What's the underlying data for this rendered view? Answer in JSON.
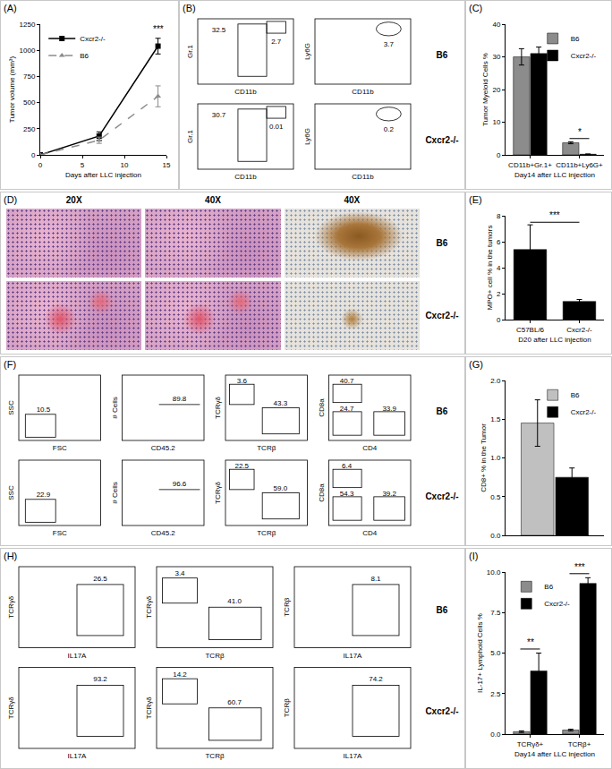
{
  "chart_data": [
    {
      "panel": "(A)",
      "type": "line",
      "x_label": "Days after LLC injection",
      "y_label": "Tumor volume (mm³)",
      "x": [
        0,
        7,
        14
      ],
      "series": [
        {
          "name": "Cxcr2-/-",
          "color": "#000000",
          "marker": "square",
          "line_style": "solid",
          "values": [
            0,
            180,
            1040
          ],
          "errors": [
            5,
            40,
            75
          ]
        },
        {
          "name": "B6",
          "color": "#8c8c8c",
          "marker": "triangle",
          "line_style": "dashed",
          "values": [
            0,
            140,
            560
          ],
          "errors": [
            5,
            30,
            100
          ]
        }
      ],
      "xlim": [
        0,
        15
      ],
      "xticks": [
        0,
        5,
        10,
        15
      ],
      "ylim": [
        0,
        1250
      ],
      "yticks": [
        0,
        250,
        500,
        750,
        1000,
        1250
      ],
      "grid": false,
      "legend": "top left",
      "annotations": [
        {
          "text": "***",
          "x": 14
        }
      ]
    },
    {
      "panel": "(C)",
      "type": "bar",
      "x_label": "Day14 after LLC injection",
      "y_label": "Tumor Myeloid Cells %",
      "categories": [
        "CD11b+Gr.1+",
        "CD11b+Ly6G+"
      ],
      "series": [
        {
          "name": "B6",
          "color": "#8c8c8c",
          "values": [
            30,
            3.7
          ],
          "errors": [
            2.5,
            0.3
          ]
        },
        {
          "name": "Cxcr2-/-",
          "color": "#000000",
          "values": [
            31,
            0.2
          ],
          "errors": [
            2,
            0.1
          ]
        }
      ],
      "ylim": [
        0,
        40
      ],
      "yticks": [
        0,
        10,
        20,
        30,
        40
      ],
      "grid": false,
      "legend": "top right",
      "annotations": [
        {
          "text": "*",
          "category": "CD11b+Ly6G+"
        }
      ]
    },
    {
      "panel": "(E)",
      "type": "bar",
      "x_label": "D20 after LLC injection",
      "y_label": "MPO+ cell % in the tumors",
      "categories": [
        "C57BL/6",
        "Cxcr2-/-"
      ],
      "values": [
        5.4,
        1.4
      ],
      "errors": [
        1.9,
        0.15
      ],
      "color": "#000000",
      "ylim": [
        0,
        8
      ],
      "yticks": [
        0,
        2,
        4,
        6,
        8
      ],
      "grid": false,
      "annotations": [
        {
          "text": "***",
          "categories": [
            "C57BL/6",
            "Cxcr2-/-"
          ]
        }
      ]
    },
    {
      "panel": "(G)",
      "type": "bar",
      "y_label": "CD8+ % in the Tumor",
      "categories": [
        null
      ],
      "series": [
        {
          "name": "B6",
          "color": "#c0c0c0",
          "values": [
            1.45
          ],
          "errors": [
            0.3
          ]
        },
        {
          "name": "Cxcr2-/-",
          "color": "#000000",
          "values": [
            0.75
          ],
          "errors": [
            0.12
          ]
        }
      ],
      "ylim": [
        0,
        2
      ],
      "yticks": [
        {
          "value": 0,
          "label": "0.0"
        },
        {
          "value": 0.5,
          "label": "0.5"
        },
        {
          "value": 1,
          "label": "1.0"
        },
        {
          "value": 1.5,
          "label": "1.5"
        },
        {
          "value": 2,
          "label": "2.0"
        }
      ],
      "grid": false,
      "legend": "top right",
      "tick_labels": "y"
    },
    {
      "panel": "(I)",
      "type": "bar",
      "x_label": "Day14 after LLC injection",
      "y_label": "IL-17+ Lymphoid Cells %",
      "categories": [
        "TCRγδ+",
        "TCRβ+"
      ],
      "series": [
        {
          "name": "B6",
          "color": "#8c8c8c",
          "values": [
            0.15,
            0.25
          ],
          "errors": [
            0.05,
            0.05
          ]
        },
        {
          "name": "Cxcr2-/-",
          "color": "#000000",
          "values": [
            3.9,
            9.3
          ],
          "errors": [
            1.1,
            0.35
          ]
        }
      ],
      "ylim": [
        0,
        10
      ],
      "yticks": [
        {
          "value": 0,
          "label": "0.0"
        },
        {
          "value": 2.5,
          "label": "2.5"
        },
        {
          "value": 5,
          "label": "5.0"
        },
        {
          "value": 7.5,
          "label": "7.5"
        },
        {
          "value": 10,
          "label": "10.0"
        }
      ],
      "grid": false,
      "legend": "top left",
      "annotations": [
        {
          "text": "**",
          "category": "TCRγδ+"
        },
        {
          "text": "***",
          "category": "TCRβ+"
        }
      ]
    }
  ],
  "flow_data": [
    {
      "panel": "(B)",
      "rows": [
        {
          "name": "B6",
          "plots": [
            {
              "x_label": "CD11b",
              "y_label": "Gr.1",
              "gates": [
                "32.5",
                "2.7"
              ]
            },
            {
              "x_label": "CD11b",
              "y_label": "Ly6G",
              "gates": [
                "3.7"
              ]
            }
          ]
        },
        {
          "name": "Cxcr2-/-",
          "plots": [
            {
              "x_label": "CD11b",
              "y_label": "Gr.1",
              "gates": [
                "30.7",
                "0.01"
              ]
            },
            {
              "x_label": "CD11b",
              "y_label": "Ly6G",
              "gates": [
                "0.2"
              ]
            }
          ]
        }
      ]
    },
    {
      "panel": "(F)",
      "rows": [
        {
          "name": "B6",
          "plots": [
            {
              "x_label": "FSC",
              "y_label": "SSC",
              "gates": [
                "10.5"
              ]
            },
            {
              "x_label": "CD45.2",
              "y_label": "# Cells",
              "gates": [
                "89.8"
              ]
            },
            {
              "x_label": "TCRβ",
              "y_label": "TCRγδ",
              "gates": [
                "3.6",
                "43.3"
              ]
            },
            {
              "x_label": "CD4",
              "y_label": "CD8a",
              "gates": [
                "40.7",
                "24.7",
                "33.9"
              ]
            }
          ]
        },
        {
          "name": "Cxcr2-/-",
          "plots": [
            {
              "x_label": "FSC",
              "y_label": "SSC",
              "gates": [
                "22.9"
              ]
            },
            {
              "x_label": "CD45.2",
              "y_label": "# Cells",
              "gates": [
                "96.6"
              ]
            },
            {
              "x_label": "TCRβ",
              "y_label": "TCRγδ",
              "gates": [
                "22.5",
                "59.0"
              ]
            },
            {
              "x_label": "CD4",
              "y_label": "CD8a",
              "gates": [
                "6.4",
                "54.3",
                "39.2"
              ]
            }
          ]
        }
      ]
    },
    {
      "panel": "(H)",
      "rows": [
        {
          "name": "B6",
          "plots": [
            {
              "x_label": "IL17A",
              "y_label": "TCRγδ",
              "gates": [
                "26.5"
              ]
            },
            {
              "x_label": "TCRβ",
              "y_label": "TCRγδ",
              "gates": [
                "3.4",
                "41.0"
              ]
            },
            {
              "x_label": "IL17A",
              "y_label": "TCRβ",
              "gates": [
                "8.1"
              ]
            }
          ]
        },
        {
          "name": "Cxcr2-/-",
          "plots": [
            {
              "x_label": "IL17A",
              "y_label": "TCRγδ",
              "gates": [
                "93.2"
              ]
            },
            {
              "x_label": "TCRβ",
              "y_label": "TCRγδ",
              "gates": [
                "14.2",
                "60.7"
              ]
            },
            {
              "x_label": "IL17A",
              "y_label": "TCRβ",
              "gates": [
                "74.2"
              ]
            }
          ]
        }
      ]
    }
  ],
  "histology": {
    "panel": "(D)",
    "columns": [
      "20X",
      "40X",
      "40X"
    ],
    "rows": [
      "B6",
      "Cxcr2-/-"
    ]
  }
}
